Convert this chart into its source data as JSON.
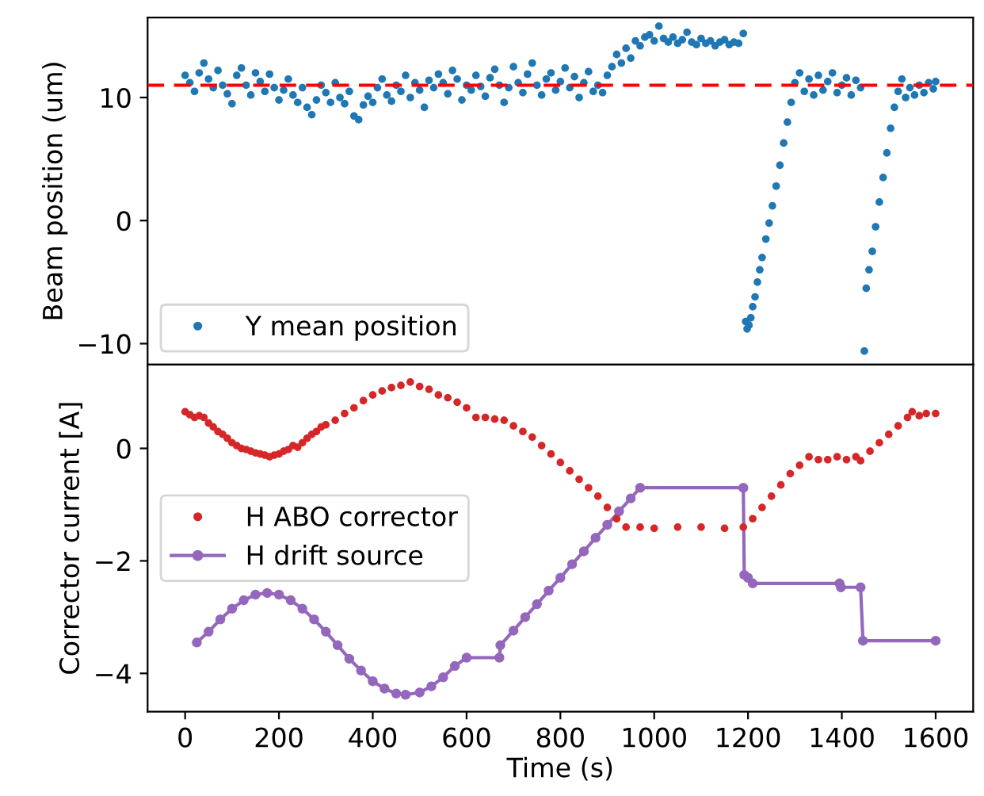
{
  "chart_data": [
    {
      "type": "scatter",
      "ylabel": "Beam position (um)",
      "xlim": [
        -80,
        1680
      ],
      "ylim": [
        -11.7,
        16.5
      ],
      "yticks": [
        -10,
        0,
        10
      ],
      "tick_labels": "y",
      "legend": "bottom left",
      "marker": "circle",
      "grid": false,
      "ref_lines": [
        {
          "axis": "y",
          "value": 11,
          "color": "#ff0000",
          "line_style": "dashed"
        }
      ],
      "series": [
        {
          "name": "Y mean position",
          "color": "#1f77b4",
          "x": [
            0,
            10,
            20,
            30,
            40,
            50,
            60,
            70,
            80,
            90,
            100,
            110,
            120,
            130,
            140,
            150,
            160,
            170,
            180,
            190,
            200,
            210,
            220,
            230,
            240,
            250,
            260,
            270,
            280,
            290,
            300,
            310,
            320,
            330,
            340,
            350,
            360,
            370,
            380,
            390,
            400,
            410,
            420,
            430,
            440,
            450,
            460,
            470,
            480,
            490,
            500,
            510,
            520,
            530,
            540,
            550,
            560,
            570,
            580,
            590,
            600,
            610,
            620,
            630,
            640,
            650,
            660,
            670,
            680,
            690,
            700,
            710,
            720,
            730,
            740,
            750,
            760,
            770,
            780,
            790,
            800,
            810,
            820,
            830,
            840,
            850,
            860,
            870,
            880,
            890,
            900,
            910,
            920,
            930,
            940,
            950,
            960,
            970,
            980,
            990,
            1000,
            1010,
            1020,
            1030,
            1040,
            1050,
            1060,
            1070,
            1080,
            1090,
            1100,
            1110,
            1120,
            1130,
            1140,
            1150,
            1160,
            1170,
            1180,
            1190,
            1195,
            1198,
            1202,
            1206,
            1210,
            1215,
            1220,
            1225,
            1230,
            1238,
            1245,
            1252,
            1260,
            1268,
            1276,
            1284,
            1292,
            1300,
            1310,
            1320,
            1330,
            1340,
            1350,
            1360,
            1370,
            1380,
            1390,
            1400,
            1410,
            1420,
            1430,
            1440,
            1448,
            1452,
            1458,
            1465,
            1472,
            1480,
            1488,
            1496,
            1504,
            1512,
            1520,
            1528,
            1536,
            1545,
            1555,
            1565,
            1575,
            1585,
            1595,
            1600
          ],
          "values": [
            11.8,
            11.2,
            10.5,
            12.0,
            12.8,
            11.5,
            10.8,
            12.2,
            11.0,
            10.3,
            9.5,
            11.8,
            12.4,
            11.0,
            10.2,
            12.0,
            11.3,
            10.5,
            11.9,
            10.8,
            9.8,
            10.6,
            11.5,
            10.2,
            9.6,
            10.8,
            9.2,
            8.6,
            9.8,
            11.0,
            10.4,
            9.6,
            11.2,
            10.0,
            9.5,
            10.5,
            8.5,
            8.2,
            9.4,
            10.1,
            9.6,
            10.8,
            11.5,
            10.2,
            9.7,
            11.0,
            10.5,
            11.8,
            10.0,
            11.2,
            10.6,
            9.2,
            11.4,
            10.8,
            11.9,
            11.2,
            10.3,
            12.2,
            11.5,
            9.8,
            11.0,
            10.6,
            11.8,
            10.9,
            10.1,
            11.6,
            12.3,
            11.0,
            9.6,
            10.8,
            12.5,
            11.2,
            10.4,
            11.9,
            12.8,
            11.0,
            10.2,
            11.5,
            12.0,
            10.6,
            11.3,
            12.4,
            10.8,
            11.7,
            10.0,
            11.2,
            12.1,
            10.5,
            11.0,
            10.4,
            11.8,
            12.5,
            13.5,
            12.8,
            14.0,
            13.2,
            14.6,
            14.2,
            14.9,
            15.1,
            14.6,
            15.8,
            14.8,
            14.5,
            14.9,
            14.4,
            14.7,
            15.3,
            14.5,
            14.3,
            14.8,
            14.4,
            14.6,
            14.2,
            14.5,
            14.7,
            14.3,
            14.5,
            14.4,
            15.2,
            -8.2,
            -8.8,
            -8.5,
            -7.9,
            -7.0,
            -6.2,
            -5.0,
            -4.0,
            -3.0,
            -1.5,
            -0.2,
            1.2,
            2.8,
            4.5,
            6.3,
            8.0,
            9.6,
            11.2,
            12.0,
            10.5,
            11.5,
            10.2,
            11.8,
            10.6,
            11.3,
            12.0,
            10.4,
            11.0,
            11.6,
            10.2,
            11.4,
            10.8,
            -10.6,
            -5.5,
            -4.0,
            -2.5,
            -0.5,
            1.5,
            3.5,
            5.5,
            7.5,
            9.2,
            10.5,
            11.5,
            10.0,
            10.8,
            10.2,
            11.0,
            10.4,
            11.2,
            10.7,
            11.3
          ]
        }
      ]
    },
    {
      "type": "scatter",
      "ylabel": "Corrector current [A]",
      "xlabel": "Time (s)",
      "xlim": [
        -80,
        1680
      ],
      "ylim": [
        -4.68,
        1.49
      ],
      "xticks": [
        0,
        200,
        400,
        600,
        800,
        1000,
        1200,
        1400,
        1600
      ],
      "yticks": [
        -4,
        -2,
        0
      ],
      "legend": "center left",
      "marker": "circle",
      "grid": false,
      "series": [
        {
          "name": "H ABO corrector",
          "color": "#d62728",
          "x": [
            0,
            10,
            20,
            30,
            40,
            50,
            60,
            70,
            80,
            90,
            100,
            110,
            120,
            130,
            140,
            150,
            160,
            170,
            180,
            190,
            200,
            210,
            220,
            230,
            240,
            250,
            260,
            270,
            280,
            290,
            300,
            320,
            340,
            360,
            380,
            400,
            420,
            440,
            460,
            480,
            500,
            520,
            540,
            560,
            580,
            600,
            620,
            640,
            660,
            680,
            700,
            720,
            740,
            760,
            780,
            800,
            820,
            840,
            860,
            880,
            900,
            920,
            940,
            970,
            1000,
            1050,
            1100,
            1150,
            1190,
            1210,
            1230,
            1250,
            1270,
            1290,
            1310,
            1330,
            1350,
            1370,
            1390,
            1410,
            1430,
            1440,
            1460,
            1480,
            1500,
            1520,
            1540,
            1550,
            1565,
            1580,
            1600
          ],
          "values": [
            0.65,
            0.6,
            0.55,
            0.58,
            0.55,
            0.45,
            0.38,
            0.3,
            0.25,
            0.18,
            0.1,
            0.05,
            0.0,
            -0.02,
            -0.05,
            -0.08,
            -0.1,
            -0.12,
            -0.15,
            -0.12,
            -0.1,
            -0.05,
            -0.02,
            0.05,
            0.02,
            0.1,
            0.18,
            0.25,
            0.3,
            0.38,
            0.42,
            0.5,
            0.62,
            0.72,
            0.85,
            0.95,
            1.02,
            1.08,
            1.12,
            1.18,
            1.1,
            1.05,
            0.95,
            0.9,
            0.82,
            0.72,
            0.55,
            0.55,
            0.52,
            0.5,
            0.4,
            0.3,
            0.2,
            0.05,
            -0.1,
            -0.25,
            -0.4,
            -0.55,
            -0.7,
            -0.85,
            -1.05,
            -1.25,
            -1.4,
            -1.4,
            -1.42,
            -1.4,
            -1.4,
            -1.42,
            -1.4,
            -1.25,
            -1.05,
            -0.85,
            -0.65,
            -0.45,
            -0.3,
            -0.15,
            -0.2,
            -0.2,
            -0.15,
            -0.2,
            -0.15,
            -0.22,
            -0.05,
            0.1,
            0.25,
            0.4,
            0.55,
            0.65,
            0.58,
            0.62,
            0.62
          ]
        },
        {
          "name": "H drift source",
          "color": "#9467bd",
          "type": "line",
          "marker": "circle",
          "line_style": "solid",
          "x": [
            25,
            50,
            75,
            100,
            125,
            150,
            175,
            200,
            225,
            250,
            275,
            300,
            325,
            350,
            375,
            400,
            425,
            450,
            470,
            500,
            525,
            550,
            575,
            600,
            670,
            672,
            700,
            725,
            750,
            775,
            800,
            825,
            850,
            875,
            900,
            925,
            950,
            970,
            1190,
            1192,
            1200,
            1210,
            1395,
            1398,
            1440,
            1445,
            1600
          ],
          "values": [
            -3.45,
            -3.26,
            -3.04,
            -2.85,
            -2.7,
            -2.6,
            -2.57,
            -2.6,
            -2.7,
            -2.85,
            -3.04,
            -3.26,
            -3.5,
            -3.74,
            -3.95,
            -4.14,
            -4.27,
            -4.36,
            -4.38,
            -4.34,
            -4.23,
            -4.07,
            -3.87,
            -3.72,
            -3.72,
            -3.5,
            -3.24,
            -3.0,
            -2.77,
            -2.53,
            -2.3,
            -2.06,
            -1.83,
            -1.59,
            -1.36,
            -1.12,
            -0.89,
            -0.7,
            -0.7,
            -2.25,
            -2.3,
            -2.4,
            -2.4,
            -2.47,
            -2.47,
            -3.42,
            -3.42
          ]
        }
      ]
    }
  ]
}
